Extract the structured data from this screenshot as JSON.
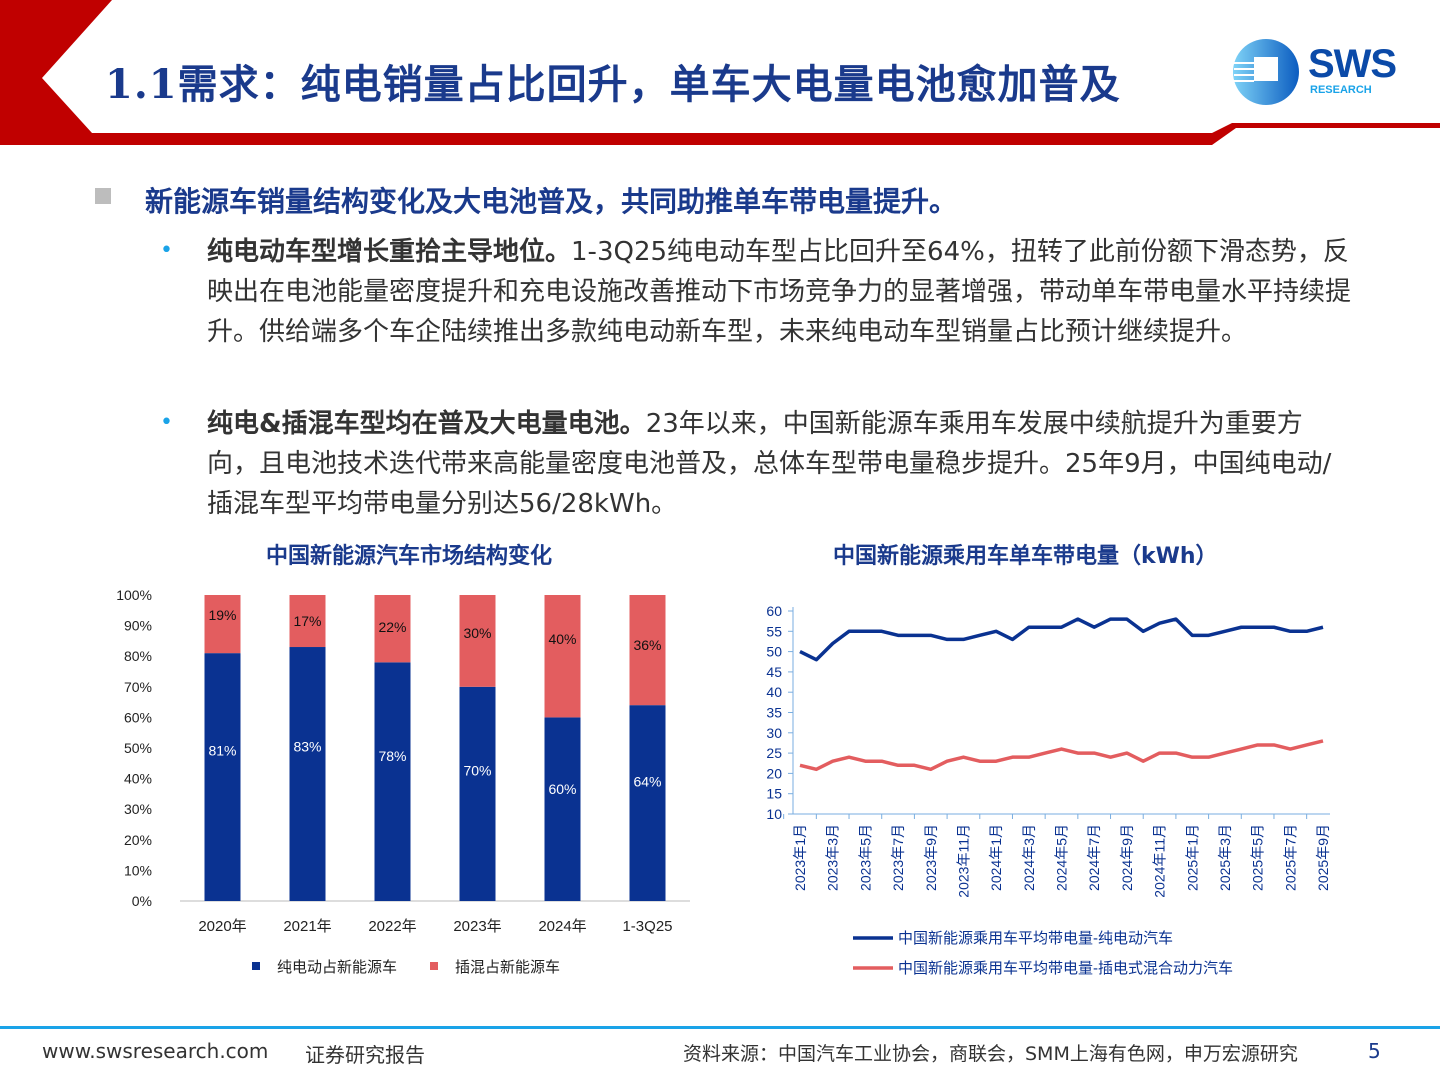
{
  "header": {
    "title": "1.1需求：纯电销量占比回升，单车大电量电池愈加普及",
    "logo_main": "SWS",
    "logo_sub": "RESEARCH"
  },
  "main": {
    "headline": "新能源车销量结构变化及大电池普及，共同助推单车带电量提升。",
    "bullets": [
      {
        "bold": "纯电动车型增长重拾主导地位。",
        "text": "1-3Q25纯电动车型占比回升至64%，扭转了此前份额下滑态势，反映出在电池能量密度提升和充电设施改善推动下市场竞争力的显著增强，带动单车带电量水平持续提升。供给端多个车企陆续推出多款纯电动新车型，未来纯电动车型销量占比预计继续提升。"
      },
      {
        "bold": "纯电&插混车型均在普及大电量电池。",
        "text": "23年以来，中国新能源车乘用车发展中续航提升为重要方向，且电池技术迭代带来高能量密度电池普及，总体车型带电量稳步提升。25年9月，中国纯电动/插混车型平均带电量分别达56/28kWh。"
      }
    ]
  },
  "chart_data": [
    {
      "type": "bar",
      "title": "中国新能源汽车市场结构变化",
      "categories": [
        "2020年",
        "2021年",
        "2022年",
        "2023年",
        "2024年",
        "1-3Q25"
      ],
      "series": [
        {
          "name": "纯电动占新能源车",
          "color": "#0a3291",
          "values": [
            81,
            83,
            78,
            70,
            60,
            64
          ],
          "labels": [
            "81%",
            "83%",
            "78%",
            "70%",
            "60%",
            "64%"
          ]
        },
        {
          "name": "插混占新能源车",
          "color": "#e35d5f",
          "values": [
            19,
            17,
            22,
            30,
            40,
            36
          ],
          "labels": [
            "19%",
            "17%",
            "22%",
            "30%",
            "40%",
            "36%"
          ]
        }
      ],
      "ylim": [
        0,
        100
      ],
      "yticks": [
        "0%",
        "10%",
        "20%",
        "30%",
        "40%",
        "50%",
        "60%",
        "70%",
        "80%",
        "90%",
        "100%"
      ],
      "stacked": true,
      "legend": "bottom"
    },
    {
      "type": "line",
      "title": "中国新能源乘用车单车带电量（kWh）",
      "ylim": [
        10,
        60
      ],
      "yticks": [
        "10",
        "15",
        "20",
        "25",
        "30",
        "35",
        "40",
        "45",
        "50",
        "55",
        "60"
      ],
      "xtick_labels": [
        "2023年1月",
        "2023年3月",
        "2023年5月",
        "2023年7月",
        "2023年9月",
        "2023年11月",
        "2024年1月",
        "2024年3月",
        "2024年5月",
        "2024年7月",
        "2024年9月",
        "2024年11月",
        "2025年1月",
        "2025年3月",
        "2025年5月",
        "2025年7月",
        "2025年9月"
      ],
      "series": [
        {
          "name": "中国新能源乘用车平均带电量-纯电动汽车",
          "color": "#0a3291",
          "values": [
            50,
            48,
            52,
            55,
            55,
            55,
            54,
            54,
            54,
            53,
            53,
            54,
            55,
            53,
            56,
            56,
            56,
            58,
            56,
            58,
            58,
            55,
            57,
            58,
            54,
            54,
            55,
            56,
            56,
            56,
            55,
            55,
            56
          ]
        },
        {
          "name": "中国新能源乘用车平均带电量-插电式混合动力汽车",
          "color": "#e35d5f",
          "values": [
            22,
            21,
            23,
            24,
            23,
            23,
            22,
            22,
            21,
            23,
            24,
            23,
            23,
            24,
            24,
            25,
            26,
            25,
            25,
            24,
            25,
            23,
            25,
            25,
            24,
            24,
            25,
            26,
            27,
            27,
            26,
            27,
            28
          ]
        }
      ],
      "legend": "bottom"
    }
  ],
  "footer": {
    "website": "www.swsresearch.com",
    "report_type": "证券研究报告",
    "source": "资料来源：中国汽车工业协会，商联会，SMM上海有色网，申万宏源研究",
    "page": "5"
  }
}
